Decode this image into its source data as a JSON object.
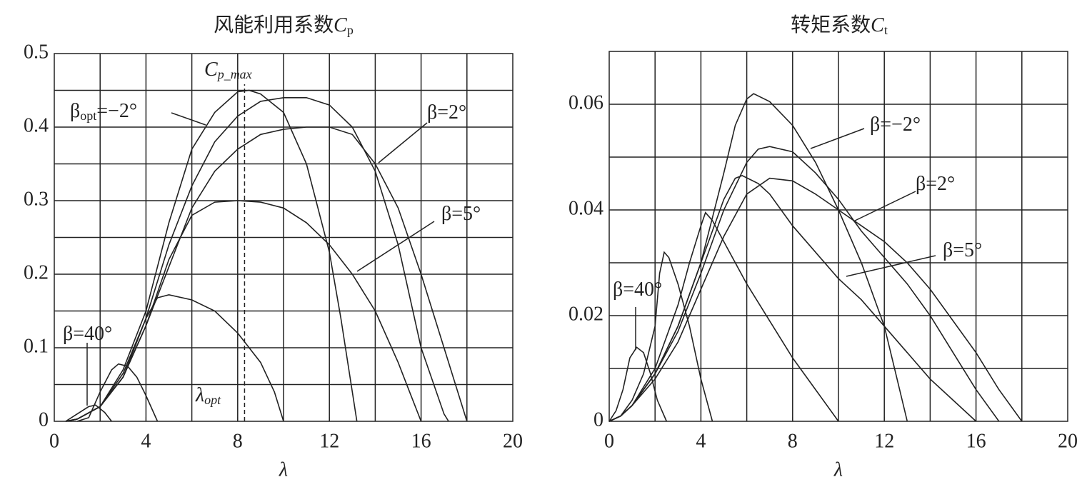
{
  "chart_data": [
    {
      "type": "line",
      "title": "风能利用系数",
      "title_var": "C",
      "title_sub": "p",
      "xlabel": "λ",
      "xlim": [
        0,
        20
      ],
      "ylim": [
        0,
        0.5
      ],
      "xticks": [
        0,
        4,
        8,
        12,
        16,
        20
      ],
      "yticks": [
        0,
        0.1,
        0.2,
        0.3,
        0.4,
        0.5
      ],
      "xgrid": [
        2,
        4,
        6,
        8,
        10,
        12,
        14,
        16,
        18
      ],
      "ygrid": [
        0.05,
        0.1,
        0.15,
        0.2,
        0.25,
        0.3,
        0.35,
        0.4,
        0.45
      ],
      "color": "#222",
      "vline": 8.3,
      "vline_label": {
        "text": "C",
        "sub": "p_max"
      },
      "vline_foot": {
        "text": "λ",
        "sub": "opt"
      },
      "series": [
        {
          "name": "β=40°",
          "x": [
            0.5,
            1,
            1.5,
            1.8,
            2.2,
            2.5
          ],
          "values": [
            0,
            0.01,
            0.02,
            0.022,
            0.012,
            0
          ]
        },
        {
          "x": [
            1,
            1.5,
            2,
            2.5,
            2.8,
            3.2,
            3.6,
            4,
            4.5
          ],
          "values": [
            0,
            0.005,
            0.04,
            0.07,
            0.078,
            0.075,
            0.06,
            0.035,
            0
          ]
        },
        {
          "x": [
            0.5,
            1,
            2,
            3,
            4,
            4.5,
            5,
            6,
            7,
            8,
            9,
            9.6,
            10
          ],
          "values": [
            0,
            0.003,
            0.02,
            0.06,
            0.14,
            0.168,
            0.172,
            0.165,
            0.15,
            0.12,
            0.08,
            0.04,
            0
          ]
        },
        {
          "name": "β=5°",
          "x": [
            0.5,
            1,
            2,
            3,
            4,
            5,
            6,
            7,
            8,
            9,
            10,
            11,
            12,
            13,
            14,
            15,
            15.5,
            16
          ],
          "values": [
            0,
            0.003,
            0.02,
            0.06,
            0.13,
            0.22,
            0.28,
            0.298,
            0.3,
            0.298,
            0.29,
            0.27,
            0.24,
            0.2,
            0.15,
            0.08,
            0.04,
            0
          ]
        },
        {
          "name": "β",
          "name_sub": "opt",
          "name_rest": "=−2°",
          "x": [
            0.5,
            1,
            2,
            3,
            4,
            5,
            6,
            7,
            8,
            8.5,
            9,
            10,
            11,
            12,
            12.5,
            13,
            13.2
          ],
          "values": [
            0,
            0.003,
            0.02,
            0.07,
            0.15,
            0.27,
            0.37,
            0.42,
            0.448,
            0.45,
            0.445,
            0.42,
            0.35,
            0.23,
            0.14,
            0.04,
            0
          ]
        },
        {
          "x": [
            0.5,
            1,
            2,
            3,
            4,
            5,
            6,
            7,
            8,
            9,
            10,
            11,
            12,
            13,
            14,
            15,
            16,
            17,
            17.2
          ],
          "values": [
            0,
            0.003,
            0.02,
            0.065,
            0.14,
            0.24,
            0.32,
            0.38,
            0.415,
            0.435,
            0.44,
            0.44,
            0.43,
            0.4,
            0.34,
            0.24,
            0.1,
            0.01,
            0
          ]
        },
        {
          "name": "β=2°",
          "x": [
            0.5,
            1,
            2,
            3,
            4,
            5,
            6,
            7,
            8,
            9,
            10,
            11,
            12,
            13,
            14,
            15,
            16,
            17,
            18
          ],
          "values": [
            0,
            0.003,
            0.02,
            0.06,
            0.13,
            0.21,
            0.29,
            0.34,
            0.37,
            0.39,
            0.397,
            0.4,
            0.4,
            0.39,
            0.35,
            0.29,
            0.2,
            0.1,
            0
          ]
        }
      ]
    },
    {
      "type": "line",
      "title": "转矩系数",
      "title_var": "C",
      "title_sub": "t",
      "xlabel": "λ",
      "xlim": [
        0,
        20
      ],
      "ylim": [
        0,
        0.07
      ],
      "xticks": [
        0,
        4,
        8,
        12,
        16,
        20
      ],
      "yticks": [
        0,
        0.02,
        0.04,
        0.06
      ],
      "xgrid": [
        2,
        4,
        6,
        8,
        10,
        12,
        14,
        16,
        18
      ],
      "ygrid": [
        0.01,
        0.02,
        0.03,
        0.04,
        0.05,
        0.06
      ],
      "color": "#222",
      "series": [
        {
          "name": "β=40°",
          "x": [
            0,
            0.3,
            0.6,
            0.9,
            1.2,
            1.5,
            1.8,
            2.1,
            2.5
          ],
          "values": [
            0,
            0.002,
            0.006,
            0.012,
            0.014,
            0.013,
            0.009,
            0.004,
            0
          ]
        },
        {
          "x": [
            0,
            0.5,
            1,
            1.5,
            2,
            2.2,
            2.4,
            2.6,
            3,
            3.5,
            4,
            4.5
          ],
          "values": [
            0,
            0.001,
            0.004,
            0.009,
            0.018,
            0.028,
            0.032,
            0.031,
            0.026,
            0.018,
            0.008,
            0
          ]
        },
        {
          "x": [
            0,
            0.5,
            1,
            2,
            3,
            3.5,
            4,
            4.2,
            4.5,
            5,
            6,
            7,
            8,
            9,
            10
          ],
          "values": [
            0,
            0.001,
            0.003,
            0.01,
            0.022,
            0.03,
            0.037,
            0.0395,
            0.038,
            0.034,
            0.026,
            0.019,
            0.012,
            0.006,
            0
          ]
        },
        {
          "name": "β=5°",
          "x": [
            0,
            0.5,
            1,
            2,
            3,
            4,
            5,
            5.5,
            5.8,
            6.5,
            7,
            8,
            9,
            10,
            11,
            12,
            13,
            14,
            15,
            16
          ],
          "values": [
            0,
            0.001,
            0.003,
            0.009,
            0.018,
            0.03,
            0.042,
            0.046,
            0.0465,
            0.045,
            0.043,
            0.037,
            0.032,
            0.027,
            0.023,
            0.018,
            0.013,
            0.008,
            0.004,
            0
          ]
        },
        {
          "name": "β=−2°",
          "x": [
            0,
            0.5,
            1,
            2,
            3,
            4,
            5,
            5.5,
            6,
            6.3,
            7,
            8,
            9,
            10,
            11,
            12,
            12.5,
            13
          ],
          "values": [
            0,
            0.001,
            0.003,
            0.009,
            0.018,
            0.03,
            0.047,
            0.056,
            0.061,
            0.062,
            0.0605,
            0.056,
            0.049,
            0.04,
            0.03,
            0.018,
            0.009,
            0
          ]
        },
        {
          "x": [
            0,
            0.5,
            1,
            2,
            3,
            4,
            5,
            6,
            6.5,
            7,
            8,
            9,
            10,
            11,
            12,
            13,
            14,
            15,
            16,
            17
          ],
          "values": [
            0,
            0.001,
            0.003,
            0.009,
            0.017,
            0.028,
            0.04,
            0.049,
            0.0515,
            0.052,
            0.051,
            0.047,
            0.042,
            0.036,
            0.031,
            0.026,
            0.02,
            0.013,
            0.006,
            0
          ]
        },
        {
          "name": "β=2°",
          "x": [
            0,
            0.5,
            1,
            2,
            3,
            4,
            5,
            6,
            7,
            8,
            9,
            10,
            11,
            12,
            13,
            14,
            15,
            16,
            17,
            18
          ],
          "values": [
            0,
            0.001,
            0.003,
            0.008,
            0.015,
            0.025,
            0.035,
            0.043,
            0.046,
            0.0455,
            0.043,
            0.04,
            0.037,
            0.034,
            0.03,
            0.025,
            0.019,
            0.013,
            0.006,
            0
          ]
        }
      ]
    }
  ]
}
